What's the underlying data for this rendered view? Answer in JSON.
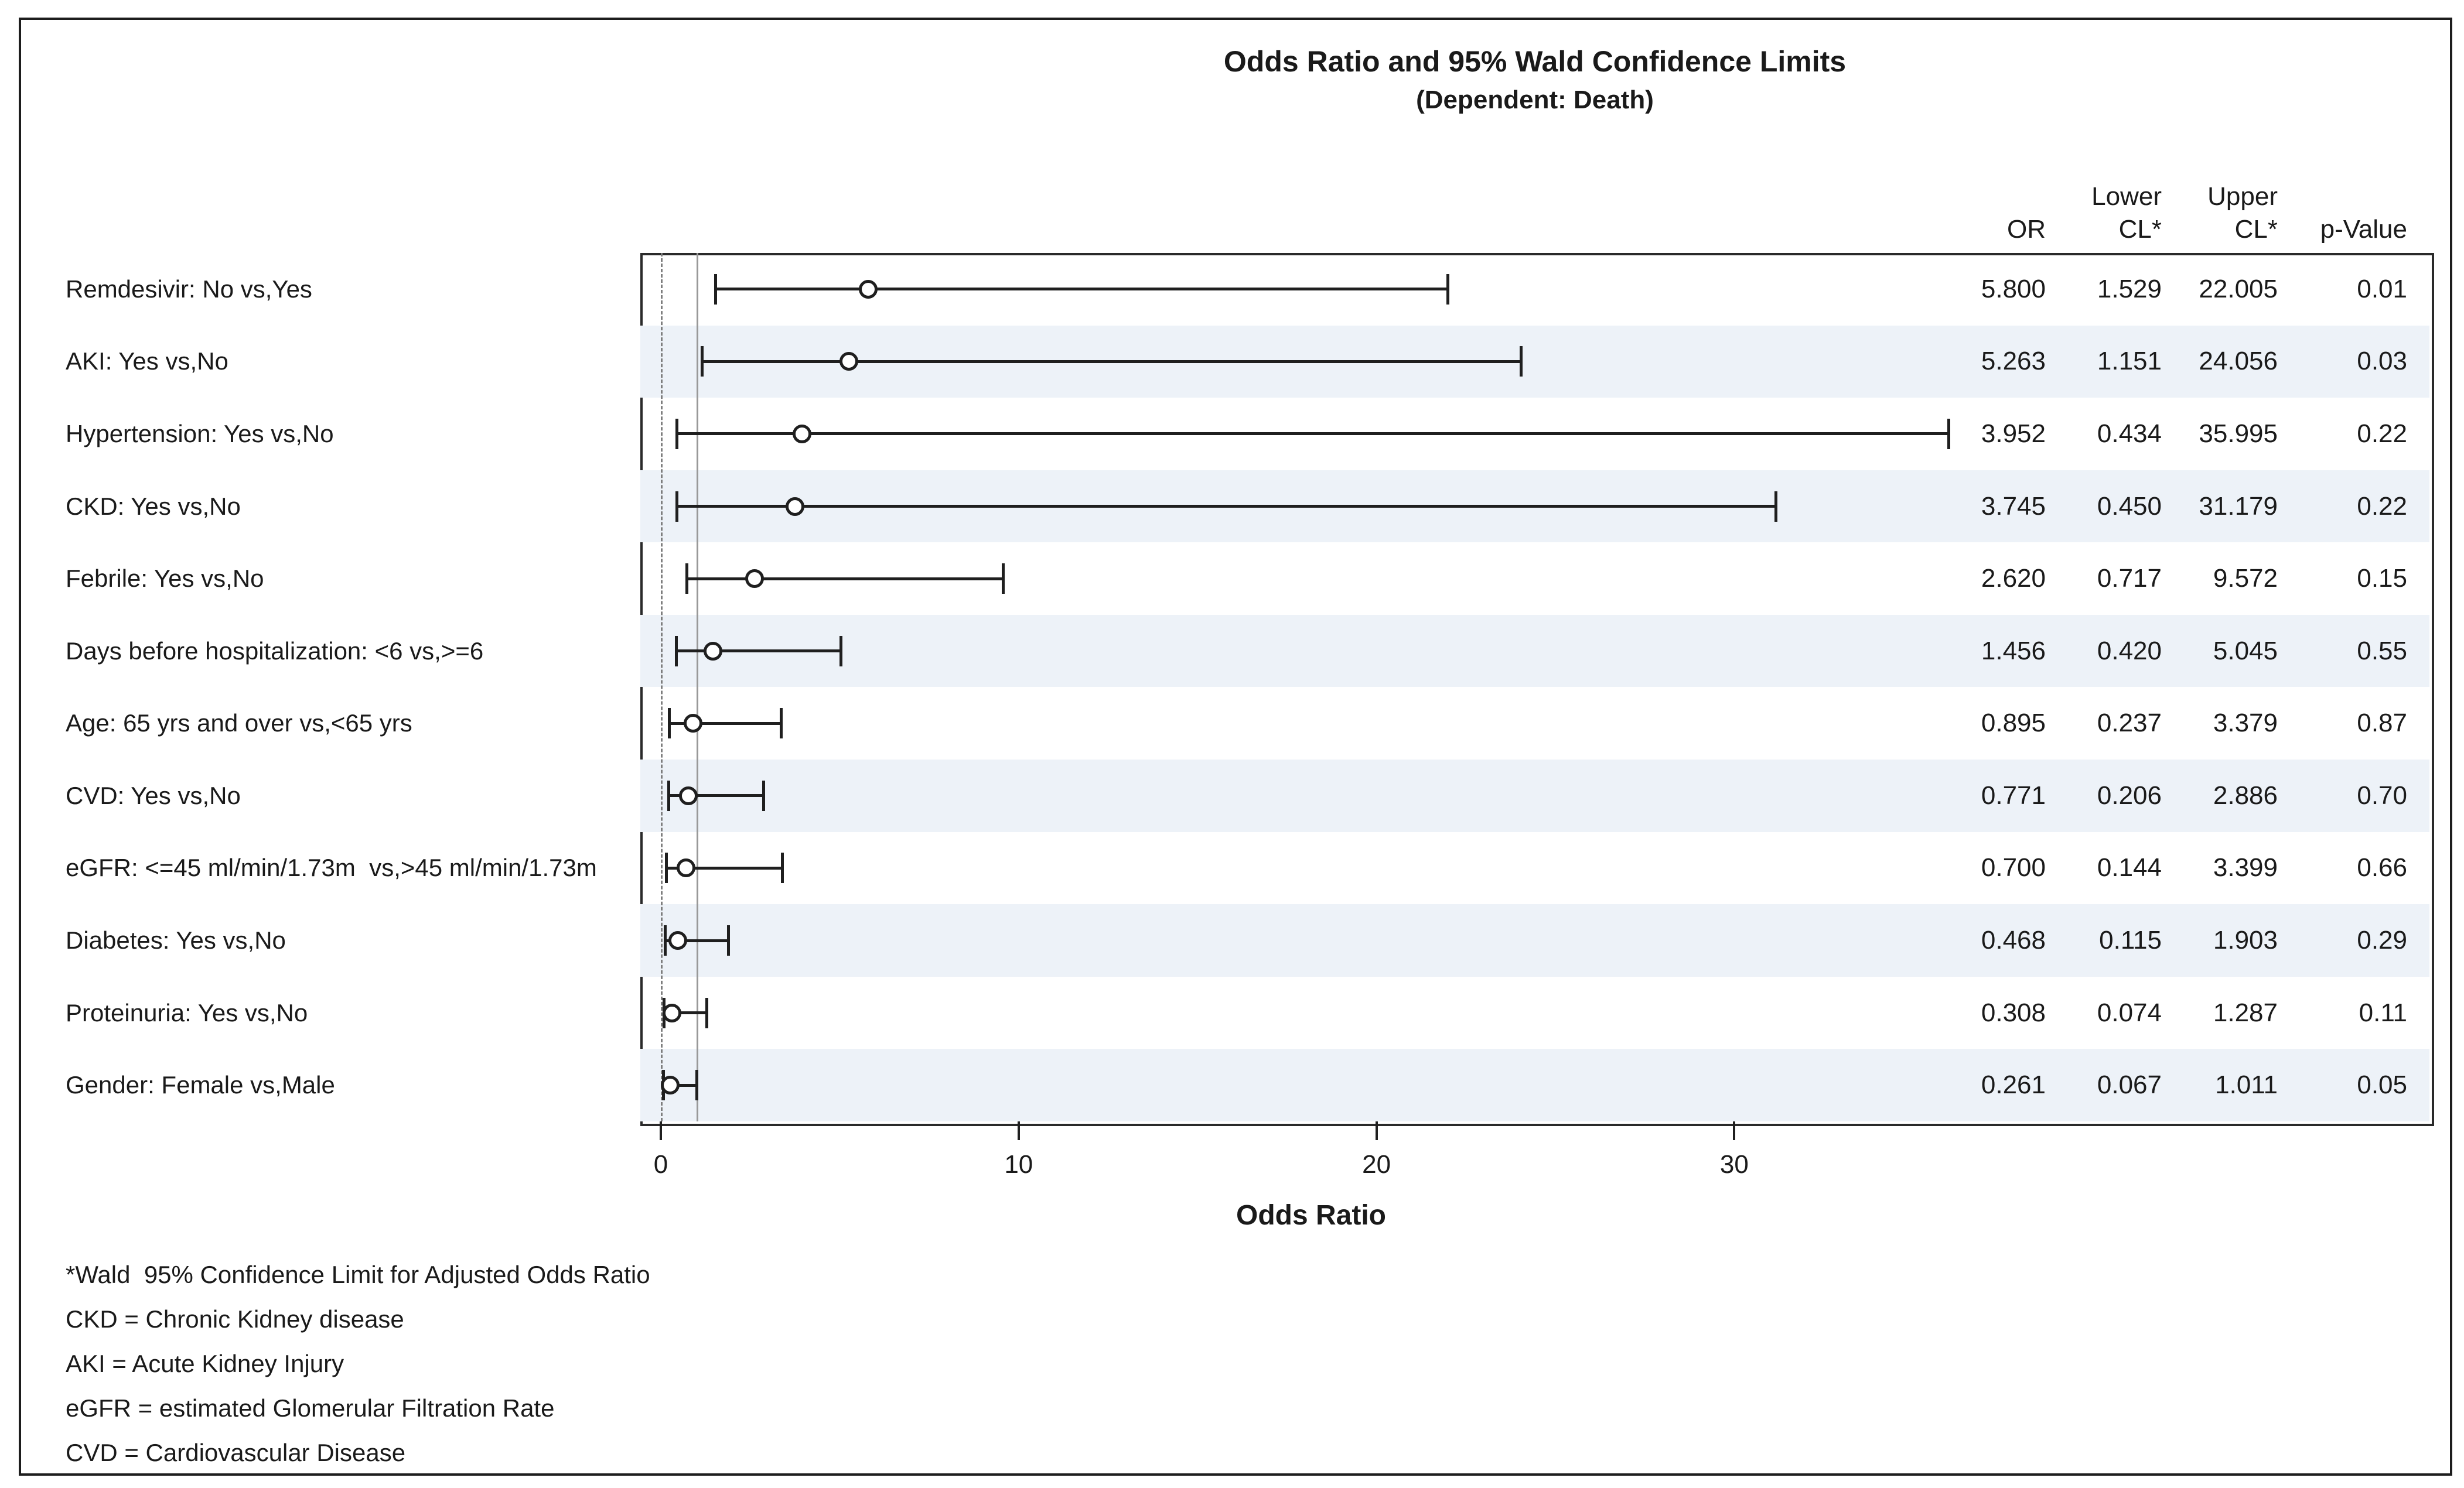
{
  "title": {
    "line1": "Odds Ratio and 95% Wald Confidence Limits",
    "line2": "(Dependent: Death)"
  },
  "columns": {
    "or": "OR",
    "lower_line1": "Lower",
    "lower_line2": "CL*",
    "upper_line1": "Upper",
    "upper_line2": "CL*",
    "pvalue": "p-Value"
  },
  "chart_data": {
    "type": "scatter",
    "subtype": "forest-plot",
    "title": "Odds Ratio and 95% Wald Confidence Limits",
    "subtitle": "(Dependent: Death)",
    "xlabel": "Odds Ratio",
    "xticks": [
      0,
      10,
      20,
      30
    ],
    "xlim": [
      -0.6,
      36.9
    ],
    "grid": false,
    "reference_lines": [
      {
        "x": 0,
        "style": "dashed"
      },
      {
        "x": 1,
        "style": "solid"
      }
    ],
    "rows": [
      {
        "label": "Remdesivir: No vs,Yes",
        "or": 5.8,
        "lower": 1.529,
        "upper": 22.005,
        "p": "0.01"
      },
      {
        "label": "AKI: Yes vs,No",
        "or": 5.263,
        "lower": 1.151,
        "upper": 24.056,
        "p": "0.03"
      },
      {
        "label": "Hypertension: Yes vs,No",
        "or": 3.952,
        "lower": 0.434,
        "upper": 35.995,
        "p": "0.22"
      },
      {
        "label": "CKD: Yes vs,No",
        "or": 3.745,
        "lower": 0.45,
        "upper": 31.179,
        "p": "0.22"
      },
      {
        "label": "Febrile: Yes vs,No",
        "or": 2.62,
        "lower": 0.717,
        "upper": 9.572,
        "p": "0.15"
      },
      {
        "label": "Days before hospitalization: <6 vs,>=6",
        "or": 1.456,
        "lower": 0.42,
        "upper": 5.045,
        "p": "0.55"
      },
      {
        "label": "Age: 65 yrs and over vs,<65 yrs",
        "or": 0.895,
        "lower": 0.237,
        "upper": 3.379,
        "p": "0.87"
      },
      {
        "label": "CVD: Yes vs,No",
        "or": 0.771,
        "lower": 0.206,
        "upper": 2.886,
        "p": "0.70"
      },
      {
        "label": "eGFR: <=45 ml/min/1.73m  vs,>45 ml/min/1.73m",
        "or": 0.7,
        "lower": 0.144,
        "upper": 3.399,
        "p": "0.66"
      },
      {
        "label": "Diabetes: Yes vs,No",
        "or": 0.468,
        "lower": 0.115,
        "upper": 1.903,
        "p": "0.29"
      },
      {
        "label": "Proteinuria: Yes vs,No",
        "or": 0.308,
        "lower": 0.074,
        "upper": 1.287,
        "p": "0.11"
      },
      {
        "label": "Gender: Female vs,Male",
        "or": 0.261,
        "lower": 0.067,
        "upper": 1.011,
        "p": "0.05"
      }
    ]
  },
  "footnotes": [
    "*Wald  95% Confidence Limit for Adjusted Odds Ratio",
    "CKD = Chronic Kidney disease",
    "AKI = Acute Kidney Injury",
    "eGFR = estimated Glomerular Filtration Rate",
    "CVD = Cardiovascular Disease"
  ],
  "colors": {
    "band": "#edf2f8",
    "frame": "#2a2a2a",
    "text": "#1a1a1a",
    "whisker": "#1f1f1f",
    "ref_dashed": "#7d7d7d",
    "ref_solid": "#999999"
  }
}
